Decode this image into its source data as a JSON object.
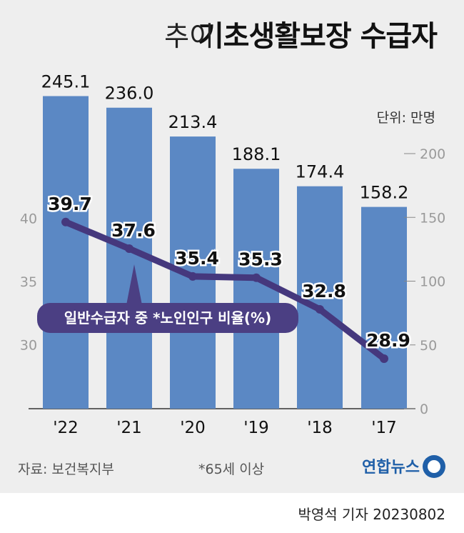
{
  "header": {
    "title_main": "기초생활보장 수급자",
    "title_sub": "추이"
  },
  "unit_label": "단위: 만명",
  "note": "*65세 이상",
  "source": "자료: 보건복지부",
  "logo_text": "연합뉴스",
  "byline": "박영석 기자 20230802",
  "colors": {
    "bar": "#5b88c4",
    "line": "#45387d",
    "legend_bg": "#4b3f83",
    "background": "#eeeeee"
  },
  "chart_data": {
    "type": "bar",
    "categories": [
      "'22",
      "'21",
      "'20",
      "'19",
      "'18",
      "'17"
    ],
    "series": [
      {
        "name": "기초생활보장 수급자",
        "axis": "right",
        "values": [
          245.1,
          236.0,
          213.4,
          188.1,
          174.4,
          158.2
        ],
        "value_labels": [
          "245.1",
          "236.0",
          "213.4",
          "188.1",
          "174.4",
          "158.2"
        ]
      },
      {
        "name": "일반수급자 중 *노인인구 비율(%)",
        "type": "line",
        "axis": "left",
        "values": [
          39.7,
          37.6,
          35.4,
          35.3,
          32.8,
          28.9
        ],
        "value_labels": [
          "39.7",
          "37.6",
          "35.4",
          "35.3",
          "32.8",
          "28.9"
        ]
      }
    ],
    "y_right": {
      "ticks": [
        "200",
        "150",
        "100",
        "50",
        "0"
      ],
      "ylim": [
        0,
        200
      ]
    },
    "y_left": {
      "ticks": [
        "40",
        "35",
        "30"
      ],
      "ylim": [
        25,
        40
      ]
    },
    "legend": {
      "label": "일반수급자 중 *노인인구 비율(%)",
      "position": "center-left"
    },
    "grid": false
  }
}
